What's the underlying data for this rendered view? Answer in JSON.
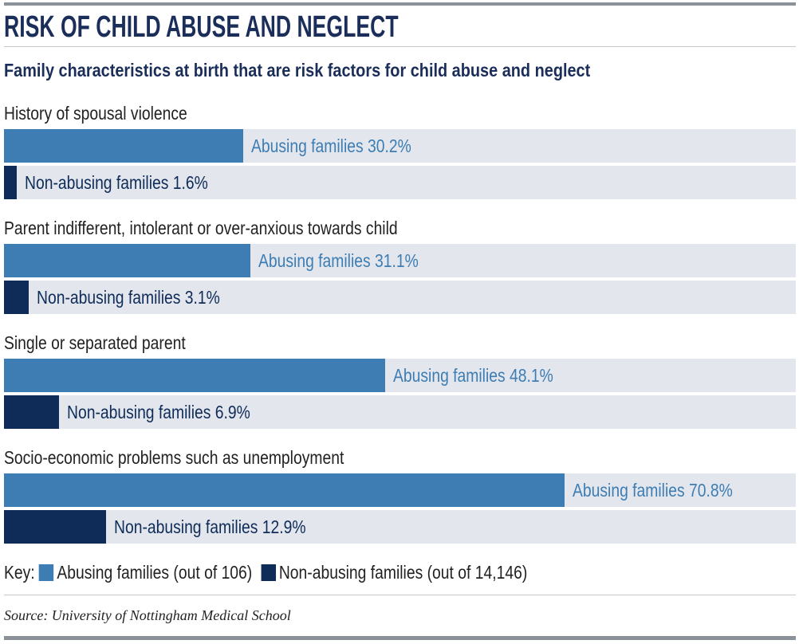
{
  "chart_data": {
    "type": "bar",
    "orientation": "horizontal",
    "title": "RISK OF CHILD ABUSE AND NEGLECT",
    "subtitle": "Family characteristics at birth that are risk factors for child abuse and neglect",
    "categories": [
      "History of spousal violence",
      "Parent indifferent, intolerant or over-anxious towards child",
      "Single or separated parent",
      "Socio-economic problems such as unemployment"
    ],
    "series": [
      {
        "name": "Abusing families",
        "values": [
          30.2,
          31.1,
          48.1,
          70.8
        ],
        "color": "#3d7db3"
      },
      {
        "name": "Non-abusing families",
        "values": [
          1.6,
          3.1,
          6.9,
          12.9
        ],
        "color": "#0f2c59"
      }
    ],
    "unit": "%",
    "xlim": [
      0,
      100
    ],
    "grid": false,
    "track_color": "#e3e7ed",
    "legend": {
      "placement": "bottom",
      "title": "Key:",
      "entries": [
        "Abusing families (out of 106)",
        "Non-abusing families (out of 14,146)"
      ]
    },
    "source": "Source: University of Nottingham Medical School"
  }
}
